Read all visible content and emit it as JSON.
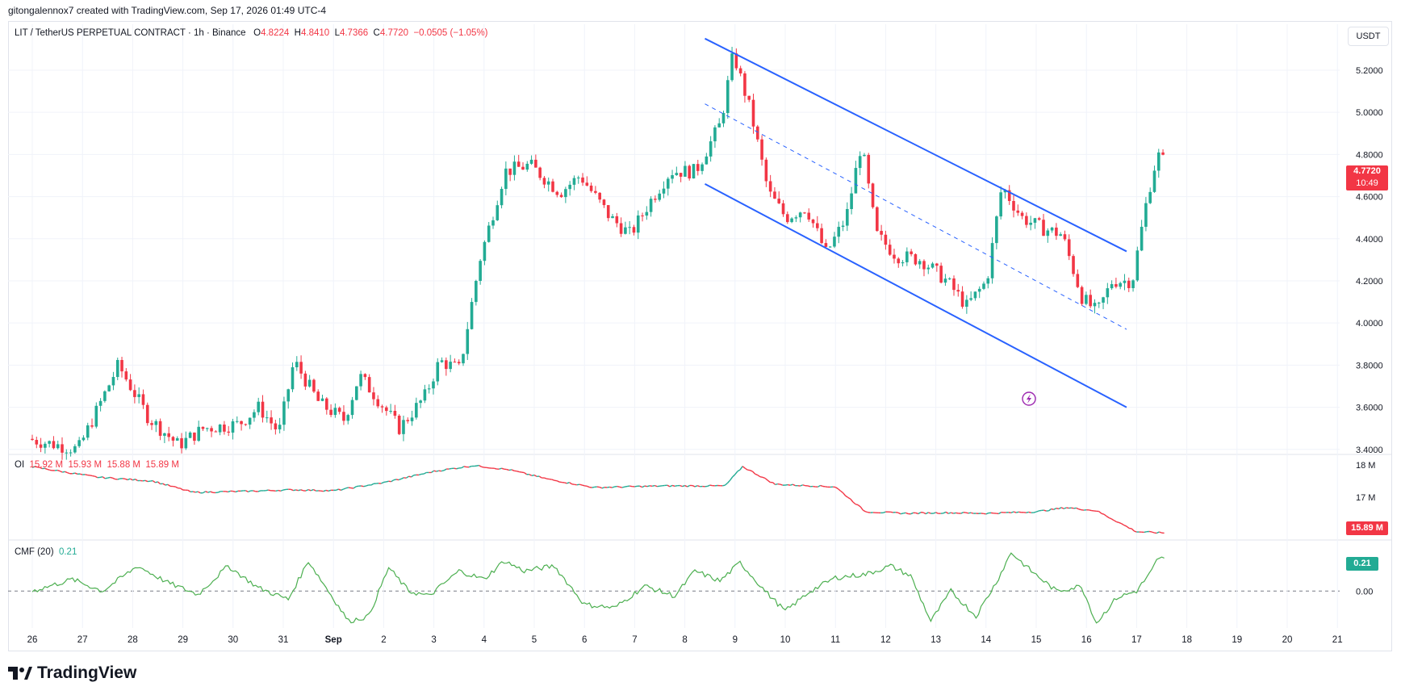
{
  "credit": "gitongalennox7 created with TradingView.com, Sep 17, 2026 01:49 UTC-4",
  "header": {
    "symbol": "LIT / TetherUS PERPETUAL CONTRACT · 1h · Binance",
    "o_label": "O",
    "o_value": "4.8224",
    "h_label": "H",
    "h_value": "4.8410",
    "l_label": "L",
    "l_value": "4.7366",
    "c_label": "C",
    "c_value": "4.7720",
    "change": "−0.0505 (−1.05%)"
  },
  "currency": "USDT",
  "price_badge": {
    "price": "4.7720",
    "countdown": "10:49"
  },
  "oi_header": {
    "label": "OI",
    "v1": "15.92 M",
    "v2": "15.93 M",
    "v3": "15.88 M",
    "v4": "15.89 M"
  },
  "oi_badge": "15.89 M",
  "cmf_header": {
    "label": "CMF (20)",
    "value": "0.21"
  },
  "cmf_badge": "0.21",
  "logo_text": "TradingView",
  "colors": {
    "up": "#22ab94",
    "down": "#f23645",
    "channel": "#2962ff",
    "cmf": "#4caf50",
    "grid": "#f0f3fa"
  },
  "chart_data": [
    {
      "type": "candlestick",
      "interval": "1h",
      "y_axis_labels": [
        "5.2000",
        "5.0000",
        "4.8000",
        "4.6000",
        "4.4000",
        "4.2000",
        "4.0000",
        "3.8000",
        "3.6000",
        "3.4000"
      ],
      "ylim": [
        3.38,
        5.38
      ],
      "x_axis_labels": [
        "26",
        "27",
        "28",
        "29",
        "30",
        "31",
        "Sep",
        "2",
        "3",
        "4",
        "5",
        "6",
        "7",
        "8",
        "9",
        "10",
        "11",
        "12",
        "13",
        "14",
        "15",
        "16",
        "17",
        "18",
        "19",
        "20",
        "21"
      ],
      "price_path": [
        [
          0,
          3.45
        ],
        [
          1,
          3.4
        ],
        [
          1.8,
          3.8
        ],
        [
          2.4,
          3.55
        ],
        [
          3.0,
          3.42
        ],
        [
          3.5,
          3.5
        ],
        [
          4.2,
          3.52
        ],
        [
          4.6,
          3.6
        ],
        [
          5.0,
          3.48
        ],
        [
          5.3,
          3.82
        ],
        [
          5.8,
          3.62
        ],
        [
          6.3,
          3.54
        ],
        [
          6.6,
          3.75
        ],
        [
          6.9,
          3.66
        ],
        [
          7.4,
          3.5
        ],
        [
          7.9,
          3.65
        ],
        [
          8.2,
          3.82
        ],
        [
          8.6,
          3.78
        ],
        [
          9.0,
          4.3
        ],
        [
          9.5,
          4.72
        ],
        [
          10.0,
          4.75
        ],
        [
          10.6,
          4.62
        ],
        [
          11.0,
          4.7
        ],
        [
          11.6,
          4.5
        ],
        [
          12.0,
          4.42
        ],
        [
          12.4,
          4.58
        ],
        [
          12.8,
          4.72
        ],
        [
          13.3,
          4.72
        ],
        [
          13.8,
          4.95
        ],
        [
          14.05,
          5.28
        ],
        [
          14.4,
          5.0
        ],
        [
          14.75,
          4.62
        ],
        [
          15.1,
          4.5
        ],
        [
          15.5,
          4.55
        ],
        [
          15.9,
          4.33
        ],
        [
          16.3,
          4.5
        ],
        [
          16.6,
          4.85
        ],
        [
          16.9,
          4.42
        ],
        [
          17.3,
          4.32
        ],
        [
          17.8,
          4.3
        ],
        [
          18.3,
          4.2
        ],
        [
          18.7,
          4.08
        ],
        [
          19.1,
          4.2
        ],
        [
          19.4,
          4.65
        ],
        [
          19.8,
          4.5
        ],
        [
          20.2,
          4.45
        ],
        [
          20.6,
          4.42
        ],
        [
          21.0,
          4.12
        ],
        [
          21.3,
          4.05
        ],
        [
          21.6,
          4.2
        ],
        [
          22.0,
          4.2
        ],
        [
          22.3,
          4.6
        ],
        [
          22.5,
          4.8
        ],
        [
          22.6,
          4.772
        ]
      ],
      "channel": {
        "upper": [
          [
            13.4,
            5.35
          ],
          [
            21.8,
            4.34
          ]
        ],
        "lower": [
          [
            13.4,
            4.66
          ],
          [
            21.8,
            3.6
          ]
        ],
        "mid": [
          [
            13.4,
            5.04
          ],
          [
            21.8,
            3.97
          ]
        ]
      }
    },
    {
      "type": "line",
      "name": "OI",
      "y_axis_labels": [
        "18 M",
        "17 M"
      ],
      "ylim": [
        15.7,
        18.3
      ],
      "path": [
        [
          0,
          17.94
        ],
        [
          1.3,
          17.62
        ],
        [
          2.4,
          17.5
        ],
        [
          3.2,
          17.15
        ],
        [
          4.2,
          17.18
        ],
        [
          5.2,
          17.23
        ],
        [
          6.0,
          17.2
        ],
        [
          7.0,
          17.45
        ],
        [
          8.0,
          17.8
        ],
        [
          8.8,
          17.98
        ],
        [
          9.5,
          17.85
        ],
        [
          10.3,
          17.55
        ],
        [
          11.2,
          17.3
        ],
        [
          12.6,
          17.35
        ],
        [
          13.8,
          17.35
        ],
        [
          14.15,
          17.95
        ],
        [
          14.8,
          17.4
        ],
        [
          16.0,
          17.32
        ],
        [
          16.6,
          16.55
        ],
        [
          17.4,
          16.5
        ],
        [
          18.2,
          16.52
        ],
        [
          19.0,
          16.5
        ],
        [
          20.0,
          16.55
        ],
        [
          20.6,
          16.68
        ],
        [
          21.2,
          16.58
        ],
        [
          22.0,
          15.93
        ],
        [
          22.6,
          15.89
        ]
      ]
    },
    {
      "type": "line",
      "name": "CMF (20)",
      "y_axis_labels": [
        "0.00"
      ],
      "ylim": [
        -0.22,
        0.3
      ],
      "path": [
        [
          0,
          0.0
        ],
        [
          0.8,
          0.07
        ],
        [
          1.4,
          0.0
        ],
        [
          2.1,
          0.15
        ],
        [
          2.7,
          0.05
        ],
        [
          3.3,
          -0.02
        ],
        [
          3.9,
          0.15
        ],
        [
          4.5,
          0.02
        ],
        [
          5.1,
          -0.05
        ],
        [
          5.5,
          0.18
        ],
        [
          5.9,
          0.0
        ],
        [
          6.3,
          -0.18
        ],
        [
          6.7,
          -0.15
        ],
        [
          7.1,
          0.14
        ],
        [
          7.5,
          0.0
        ],
        [
          7.9,
          -0.03
        ],
        [
          8.5,
          0.12
        ],
        [
          9.0,
          0.07
        ],
        [
          9.4,
          0.18
        ],
        [
          9.8,
          0.12
        ],
        [
          10.4,
          0.15
        ],
        [
          11.0,
          -0.08
        ],
        [
          11.6,
          -0.1
        ],
        [
          12.2,
          0.03
        ],
        [
          12.8,
          -0.03
        ],
        [
          13.2,
          0.12
        ],
        [
          13.7,
          0.06
        ],
        [
          14.1,
          0.17
        ],
        [
          14.6,
          0.0
        ],
        [
          15.0,
          -0.12
        ],
        [
          15.5,
          0.0
        ],
        [
          16.0,
          0.08
        ],
        [
          16.6,
          0.1
        ],
        [
          17.1,
          0.15
        ],
        [
          17.5,
          0.09
        ],
        [
          17.9,
          -0.18
        ],
        [
          18.3,
          0.0
        ],
        [
          18.8,
          -0.15
        ],
        [
          19.2,
          0.05
        ],
        [
          19.5,
          0.23
        ],
        [
          19.9,
          0.12
        ],
        [
          20.4,
          0.0
        ],
        [
          20.9,
          0.03
        ],
        [
          21.2,
          -0.19
        ],
        [
          21.6,
          -0.04
        ],
        [
          22.0,
          0.0
        ],
        [
          22.3,
          0.12
        ],
        [
          22.4,
          0.18
        ],
        [
          22.6,
          0.21
        ]
      ]
    }
  ]
}
